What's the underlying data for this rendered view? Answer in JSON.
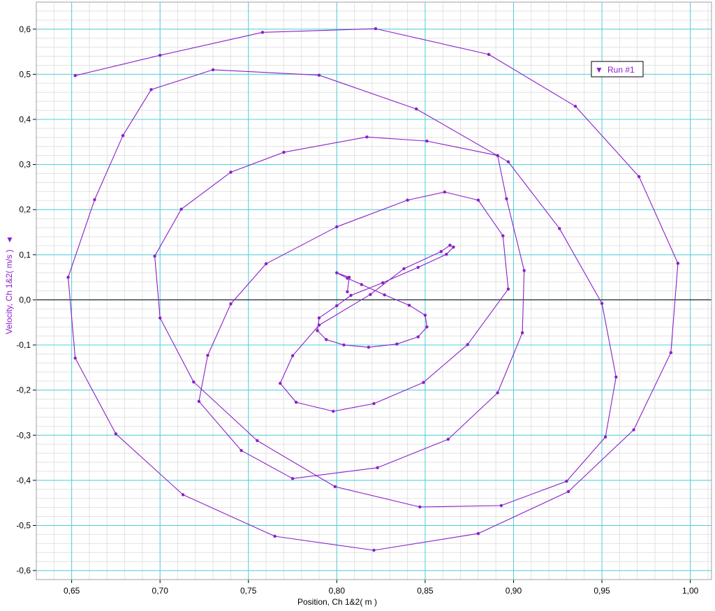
{
  "chart_data": {
    "type": "line",
    "title": "",
    "xlabel": "Position, Ch 1&2( m )",
    "ylabel": "Velocity, Ch 1&2( m/s )",
    "xlim": [
      0.63,
      1.012
    ],
    "ylim": [
      -0.62,
      0.66
    ],
    "xticks": [
      "0,65",
      "0,70",
      "0,75",
      "0,80",
      "0,85",
      "0,90",
      "0,95",
      "1,00"
    ],
    "xtick_values": [
      0.65,
      0.7,
      0.75,
      0.8,
      0.85,
      0.9,
      0.95,
      1.0
    ],
    "yticks": [
      "0,6",
      "0,5",
      "0,4",
      "0,3",
      "0,2",
      "0,1",
      "0,0",
      "-0,1",
      "-0,2",
      "-0,3",
      "-0,4",
      "-0,5",
      "-0,6"
    ],
    "ytick_values": [
      0.6,
      0.5,
      0.4,
      0.3,
      0.2,
      0.1,
      0.0,
      -0.1,
      -0.2,
      -0.3,
      -0.4,
      -0.5,
      -0.6
    ],
    "grid": true,
    "legend_position": "top-right",
    "legend_marker": "▼",
    "colors": {
      "series": "#8a1fc9",
      "grid_major": "#4fd0dc",
      "grid_minor": "#e2e2e2",
      "zero_line": "#000000"
    },
    "series": [
      {
        "name": "Run #1",
        "x": [
          0.652,
          0.7,
          0.758,
          0.822,
          0.886,
          0.935,
          0.971,
          0.993,
          0.989,
          0.968,
          0.931,
          0.88,
          0.821,
          0.765,
          0.713,
          0.675,
          0.652,
          0.648,
          0.663,
          0.679,
          0.695,
          0.73,
          0.79,
          0.845,
          0.897,
          0.926,
          0.95,
          0.958,
          0.952,
          0.93,
          0.893,
          0.847,
          0.799,
          0.755,
          0.719,
          0.7,
          0.697,
          0.712,
          0.74,
          0.77,
          0.817,
          0.851,
          0.891,
          0.896,
          0.906,
          0.905,
          0.891,
          0.863,
          0.823,
          0.775,
          0.746,
          0.722,
          0.727,
          0.74,
          0.76,
          0.8,
          0.84,
          0.861,
          0.88,
          0.894,
          0.897,
          0.874,
          0.849,
          0.821,
          0.798,
          0.777,
          0.768,
          0.775,
          0.79,
          0.819,
          0.838,
          0.859,
          0.864,
          0.866,
          0.862,
          0.846,
          0.826,
          0.808,
          0.8,
          0.79,
          0.789,
          0.794,
          0.804,
          0.818,
          0.834,
          0.846,
          0.851,
          0.85,
          0.841,
          0.827,
          0.814,
          0.806,
          0.8,
          0.807,
          0.806
        ],
        "y": [
          0.497,
          0.542,
          0.593,
          0.601,
          0.544,
          0.429,
          0.273,
          0.081,
          -0.117,
          -0.288,
          -0.425,
          -0.518,
          -0.555,
          -0.524,
          -0.432,
          -0.297,
          -0.129,
          0.05,
          0.222,
          0.364,
          0.466,
          0.51,
          0.498,
          0.423,
          0.306,
          0.158,
          -0.008,
          -0.171,
          -0.304,
          -0.402,
          -0.456,
          -0.459,
          -0.414,
          -0.312,
          -0.182,
          -0.04,
          0.097,
          0.201,
          0.283,
          0.327,
          0.361,
          0.352,
          0.32,
          0.224,
          0.065,
          -0.073,
          -0.206,
          -0.309,
          -0.372,
          -0.396,
          -0.334,
          -0.225,
          -0.123,
          -0.009,
          0.08,
          0.162,
          0.221,
          0.239,
          0.221,
          0.142,
          0.024,
          -0.099,
          -0.183,
          -0.23,
          -0.247,
          -0.227,
          -0.185,
          -0.124,
          -0.056,
          0.012,
          0.069,
          0.107,
          0.121,
          0.117,
          0.101,
          0.072,
          0.038,
          0.01,
          -0.013,
          -0.04,
          -0.068,
          -0.088,
          -0.1,
          -0.105,
          -0.098,
          -0.082,
          -0.06,
          -0.034,
          -0.012,
          0.011,
          0.034,
          0.048,
          0.06,
          0.05,
          0.018
        ]
      }
    ]
  }
}
